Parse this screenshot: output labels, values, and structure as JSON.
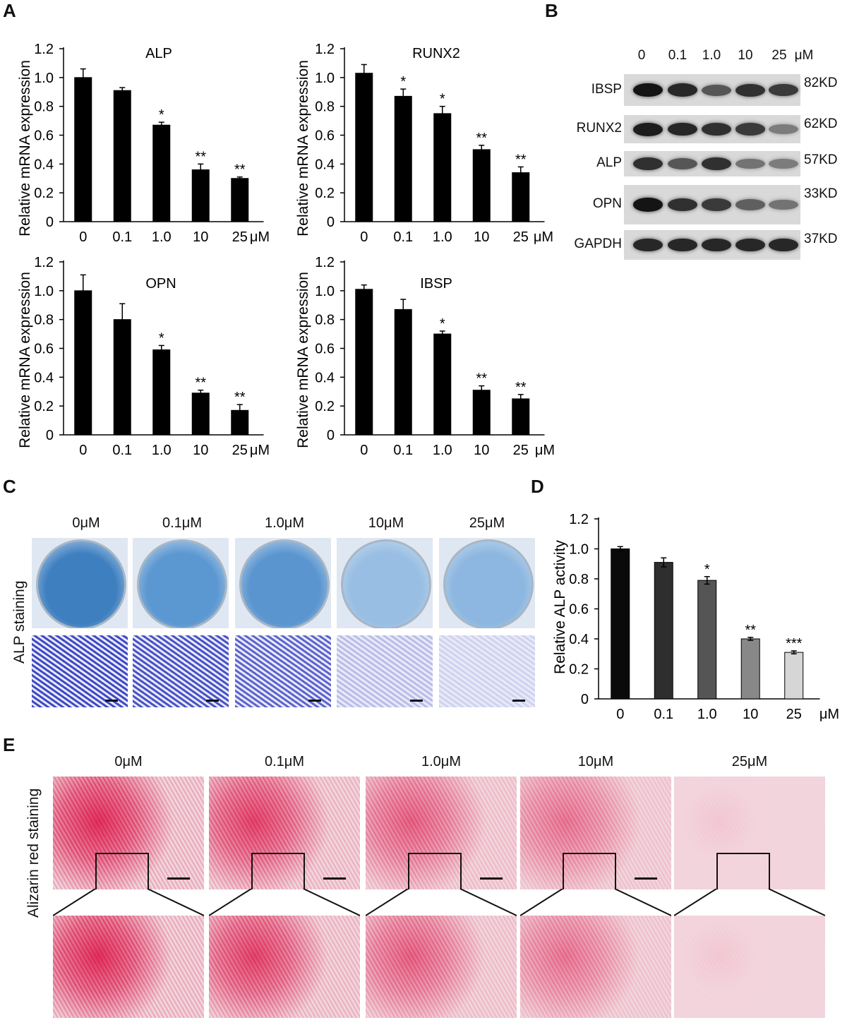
{
  "panels": {
    "a": "A",
    "b": "B",
    "c": "C",
    "d": "D",
    "e": "E"
  },
  "chart_data": [
    {
      "type": "bar",
      "title": "ALP",
      "ylabel": "Relative mRNA expression",
      "categories": [
        "0",
        "0.1",
        "1.0",
        "10",
        "25"
      ],
      "unit": "μM",
      "values": [
        1.0,
        0.91,
        0.67,
        0.36,
        0.3
      ],
      "errors": [
        0.06,
        0.02,
        0.02,
        0.04,
        0.01
      ],
      "significance": [
        "",
        "",
        "*",
        "**",
        "**"
      ],
      "yticks": [
        "0",
        "0.2",
        "0.4",
        "0.6",
        "0.8",
        "1.0",
        "1.2"
      ],
      "ylim": [
        0,
        1.2
      ]
    },
    {
      "type": "bar",
      "title": "RUNX2",
      "ylabel": "Relative mRNA expression",
      "categories": [
        "0",
        "0.1",
        "1.0",
        "10",
        "25"
      ],
      "unit": "μM",
      "values": [
        1.03,
        0.87,
        0.75,
        0.5,
        0.34
      ],
      "errors": [
        0.06,
        0.05,
        0.05,
        0.03,
        0.04
      ],
      "significance": [
        "",
        "*",
        "*",
        "**",
        "**"
      ],
      "yticks": [
        "0",
        "0.2",
        "0.4",
        "0.6",
        "0.8",
        "1.0",
        "1.2"
      ],
      "ylim": [
        0,
        1.2
      ]
    },
    {
      "type": "bar",
      "title": "OPN",
      "ylabel": "Relative mRNA expression",
      "categories": [
        "0",
        "0.1",
        "1.0",
        "10",
        "25"
      ],
      "unit": "μM",
      "values": [
        1.0,
        0.8,
        0.59,
        0.29,
        0.17
      ],
      "errors": [
        0.11,
        0.11,
        0.03,
        0.02,
        0.04
      ],
      "significance": [
        "",
        "",
        "*",
        "**",
        "**"
      ],
      "yticks": [
        "0",
        "0.2",
        "0.4",
        "0.6",
        "0.8",
        "1.0",
        "1.2"
      ],
      "ylim": [
        0,
        1.2
      ]
    },
    {
      "type": "bar",
      "title": "IBSP",
      "ylabel": "Relative mRNA expression",
      "categories": [
        "0",
        "0.1",
        "1.0",
        "10",
        "25"
      ],
      "unit": "μM",
      "values": [
        1.01,
        0.87,
        0.7,
        0.31,
        0.25
      ],
      "errors": [
        0.03,
        0.07,
        0.02,
        0.03,
        0.03
      ],
      "significance": [
        "",
        "",
        "*",
        "**",
        "**"
      ],
      "yticks": [
        "0",
        "0.2",
        "0.4",
        "0.6",
        "0.8",
        "1.0",
        "1.2"
      ],
      "ylim": [
        0,
        1.2
      ]
    },
    {
      "type": "bar",
      "title": "",
      "ylabel": "Relative ALP activity",
      "categories": [
        "0",
        "0.1",
        "1.0",
        "10",
        "25"
      ],
      "unit": "μM",
      "values": [
        1.0,
        0.91,
        0.79,
        0.4,
        0.31
      ],
      "errors": [
        0.015,
        0.03,
        0.025,
        0.01,
        0.01
      ],
      "significance": [
        "",
        "",
        "*",
        "**",
        "***"
      ],
      "colors": [
        "#0a0a0a",
        "#2e2e2e",
        "#555555",
        "#888888",
        "#d6d6d6"
      ],
      "yticks": [
        "0",
        "0.2",
        "0.4",
        "0.6",
        "0.8",
        "1.0",
        "1.2"
      ],
      "ylim": [
        0,
        1.2
      ]
    }
  ],
  "blot": {
    "lanes": [
      "0",
      "0.1",
      "1.0",
      "10",
      "25"
    ],
    "unit": "μM",
    "proteins": [
      {
        "name": "IBSP",
        "kd": "82KD",
        "intensity": [
          0.95,
          0.85,
          0.6,
          0.8,
          0.75
        ]
      },
      {
        "name": "RUNX2",
        "kd": "62KD",
        "intensity": [
          0.9,
          0.85,
          0.8,
          0.75,
          0.4
        ]
      },
      {
        "name": "ALP",
        "kd": "57KD",
        "intensity": [
          0.8,
          0.6,
          0.8,
          0.45,
          0.4
        ]
      },
      {
        "name": "OPN",
        "kd": "33KD",
        "intensity": [
          0.95,
          0.8,
          0.75,
          0.55,
          0.45
        ]
      },
      {
        "name": "GAPDH",
        "kd": "37KD",
        "intensity": [
          0.85,
          0.85,
          0.85,
          0.85,
          0.85
        ]
      }
    ]
  },
  "staining_c": {
    "label": "ALP staining",
    "columns": [
      "0μM",
      "0.1μM",
      "1.0μM",
      "10μM",
      "25μM"
    ]
  },
  "staining_e": {
    "label": "Alizarin red staining",
    "columns": [
      "0μM",
      "0.1μM",
      "1.0μM",
      "10μM",
      "25μM"
    ]
  }
}
